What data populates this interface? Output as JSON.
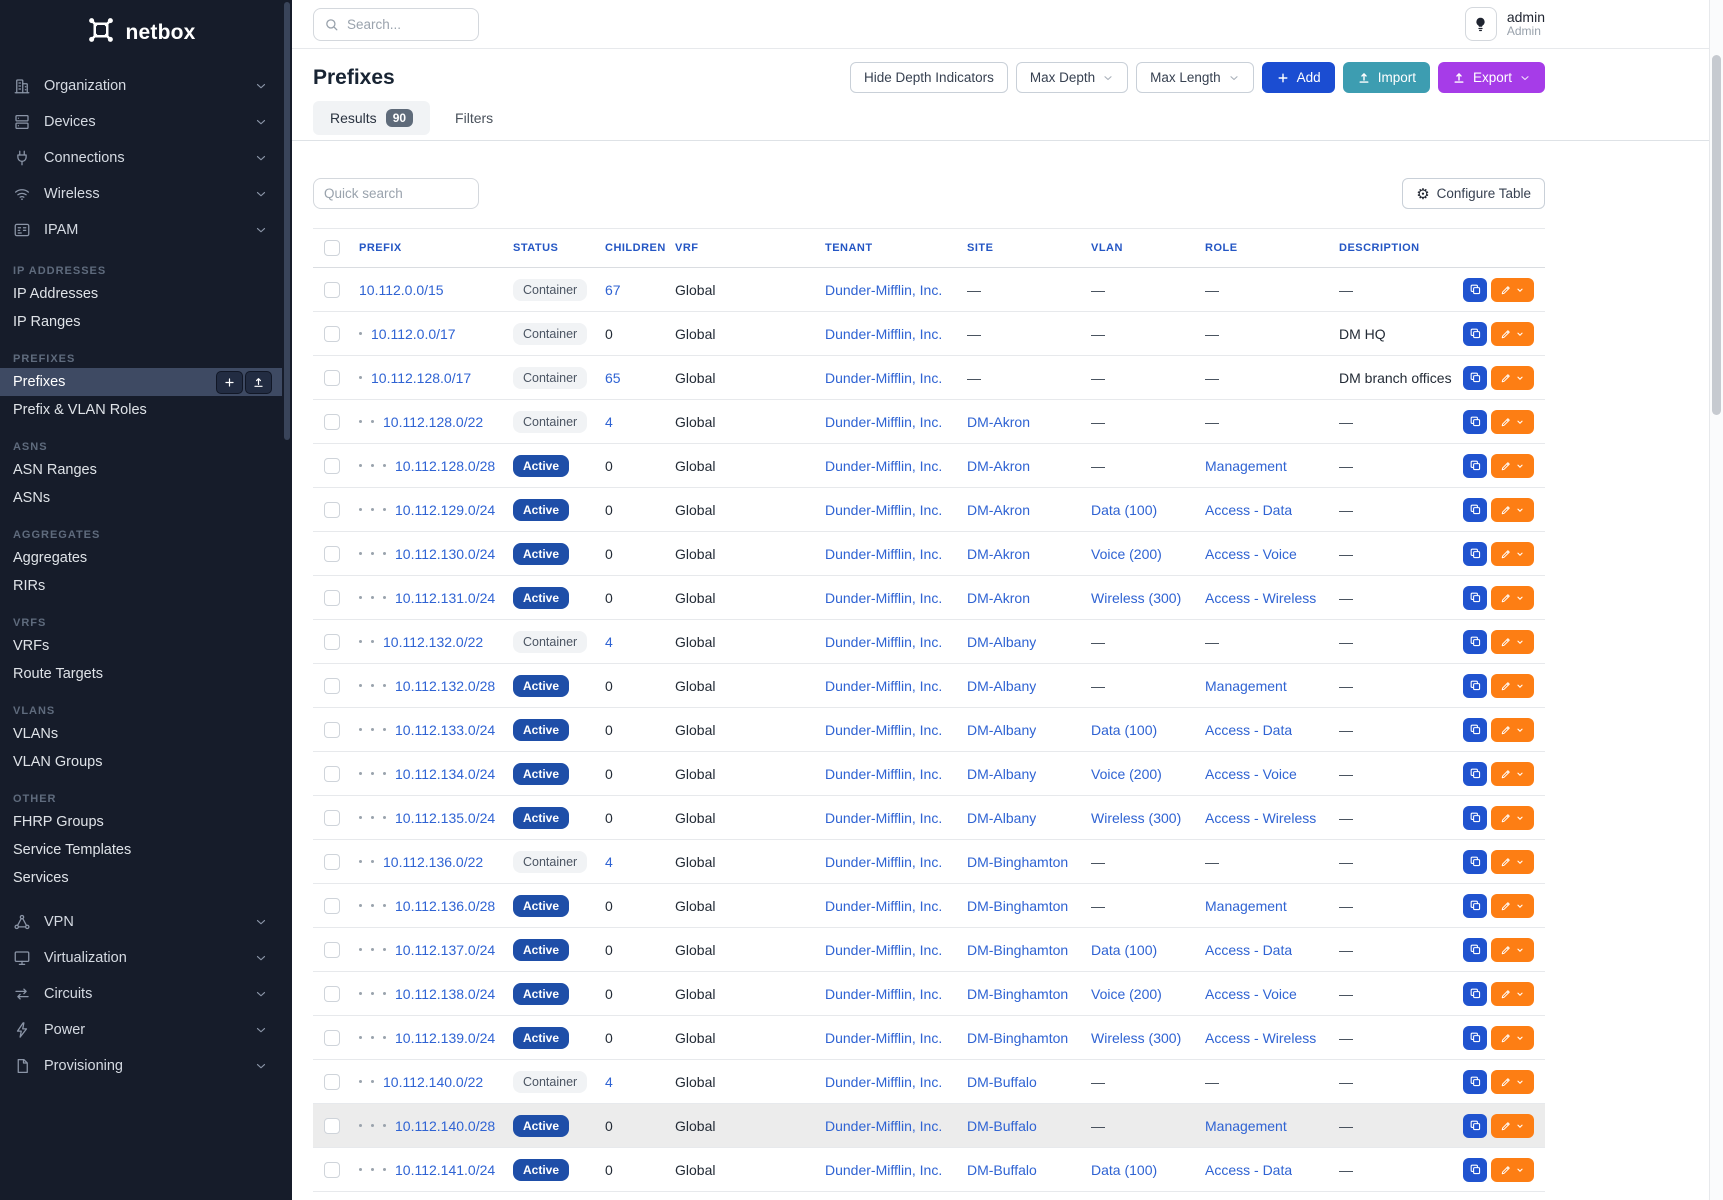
{
  "sidebar": {
    "brand": "netbox",
    "top_items": [
      {
        "label": "Organization",
        "icon": "organization"
      },
      {
        "label": "Devices",
        "icon": "devices"
      },
      {
        "label": "Connections",
        "icon": "connections"
      },
      {
        "label": "Wireless",
        "icon": "wireless"
      },
      {
        "label": "IPAM",
        "icon": "ipam"
      }
    ],
    "sections": [
      {
        "label": "IP ADDRESSES",
        "items": [
          {
            "label": "IP Addresses"
          },
          {
            "label": "IP Ranges"
          }
        ]
      },
      {
        "label": "PREFIXES",
        "items": [
          {
            "label": "Prefixes",
            "active": true,
            "actions": [
              "plus",
              "upload"
            ]
          },
          {
            "label": "Prefix & VLAN Roles"
          }
        ]
      },
      {
        "label": "ASNS",
        "items": [
          {
            "label": "ASN Ranges"
          },
          {
            "label": "ASNs"
          }
        ]
      },
      {
        "label": "AGGREGATES",
        "items": [
          {
            "label": "Aggregates"
          },
          {
            "label": "RIRs"
          }
        ]
      },
      {
        "label": "VRFS",
        "items": [
          {
            "label": "VRFs"
          },
          {
            "label": "Route Targets"
          }
        ]
      },
      {
        "label": "VLANS",
        "items": [
          {
            "label": "VLANs"
          },
          {
            "label": "VLAN Groups"
          }
        ]
      },
      {
        "label": "OTHER",
        "items": [
          {
            "label": "FHRP Groups"
          },
          {
            "label": "Service Templates"
          },
          {
            "label": "Services"
          }
        ]
      }
    ],
    "bottom_items": [
      {
        "label": "VPN",
        "icon": "vpn"
      },
      {
        "label": "Virtualization",
        "icon": "virtualization"
      },
      {
        "label": "Circuits",
        "icon": "circuits"
      },
      {
        "label": "Power",
        "icon": "power"
      },
      {
        "label": "Provisioning",
        "icon": "provisioning"
      }
    ]
  },
  "topbar": {
    "search_placeholder": "Search...",
    "user": {
      "name": "admin",
      "role": "Admin"
    }
  },
  "page": {
    "title": "Prefixes",
    "toolbar": [
      {
        "label": "Hide Depth Indicators",
        "style": "outline"
      },
      {
        "label": "Max Depth",
        "style": "outline",
        "caret": true
      },
      {
        "label": "Max Length",
        "style": "outline",
        "caret": true
      },
      {
        "label": "Add",
        "style": "primary",
        "icon": "plus"
      },
      {
        "label": "Import",
        "style": "teal",
        "icon": "upload"
      },
      {
        "label": "Export",
        "style": "purple",
        "icon": "upload",
        "caret": true
      }
    ],
    "tabs": [
      {
        "label": "Results",
        "badge": "90",
        "active": true
      },
      {
        "label": "Filters",
        "active": false
      }
    ]
  },
  "table": {
    "quick_search_placeholder": "Quick search",
    "configure_label": "Configure Table",
    "columns": [
      "PREFIX",
      "STATUS",
      "CHILDREN",
      "VRF",
      "TENANT",
      "SITE",
      "VLAN",
      "ROLE",
      "DESCRIPTION"
    ],
    "empty_value": "—",
    "rows": [
      {
        "depth": 0,
        "prefix": "10.112.0.0/15",
        "status": "Container",
        "children": "67",
        "vrf": "Global",
        "tenant": "Dunder-Mifflin, Inc.",
        "site": "",
        "vlan": "",
        "role": "",
        "description": "",
        "highlight": false
      },
      {
        "depth": 1,
        "prefix": "10.112.0.0/17",
        "status": "Container",
        "children": "0",
        "vrf": "Global",
        "tenant": "Dunder-Mifflin, Inc.",
        "site": "",
        "vlan": "",
        "role": "",
        "description": "DM HQ",
        "highlight": false
      },
      {
        "depth": 1,
        "prefix": "10.112.128.0/17",
        "status": "Container",
        "children": "65",
        "vrf": "Global",
        "tenant": "Dunder-Mifflin, Inc.",
        "site": "",
        "vlan": "",
        "role": "",
        "description": "DM branch offices",
        "highlight": false
      },
      {
        "depth": 2,
        "prefix": "10.112.128.0/22",
        "status": "Container",
        "children": "4",
        "vrf": "Global",
        "tenant": "Dunder-Mifflin, Inc.",
        "site": "DM-Akron",
        "vlan": "",
        "role": "",
        "description": "",
        "highlight": false
      },
      {
        "depth": 3,
        "prefix": "10.112.128.0/28",
        "status": "Active",
        "children": "0",
        "vrf": "Global",
        "tenant": "Dunder-Mifflin, Inc.",
        "site": "DM-Akron",
        "vlan": "",
        "role": "Management",
        "description": "",
        "highlight": false
      },
      {
        "depth": 3,
        "prefix": "10.112.129.0/24",
        "status": "Active",
        "children": "0",
        "vrf": "Global",
        "tenant": "Dunder-Mifflin, Inc.",
        "site": "DM-Akron",
        "vlan": "Data (100)",
        "role": "Access - Data",
        "description": "",
        "highlight": false
      },
      {
        "depth": 3,
        "prefix": "10.112.130.0/24",
        "status": "Active",
        "children": "0",
        "vrf": "Global",
        "tenant": "Dunder-Mifflin, Inc.",
        "site": "DM-Akron",
        "vlan": "Voice (200)",
        "role": "Access - Voice",
        "description": "",
        "highlight": false
      },
      {
        "depth": 3,
        "prefix": "10.112.131.0/24",
        "status": "Active",
        "children": "0",
        "vrf": "Global",
        "tenant": "Dunder-Mifflin, Inc.",
        "site": "DM-Akron",
        "vlan": "Wireless (300)",
        "role": "Access - Wireless",
        "description": "",
        "highlight": false
      },
      {
        "depth": 2,
        "prefix": "10.112.132.0/22",
        "status": "Container",
        "children": "4",
        "vrf": "Global",
        "tenant": "Dunder-Mifflin, Inc.",
        "site": "DM-Albany",
        "vlan": "",
        "role": "",
        "description": "",
        "highlight": false
      },
      {
        "depth": 3,
        "prefix": "10.112.132.0/28",
        "status": "Active",
        "children": "0",
        "vrf": "Global",
        "tenant": "Dunder-Mifflin, Inc.",
        "site": "DM-Albany",
        "vlan": "",
        "role": "Management",
        "description": "",
        "highlight": false
      },
      {
        "depth": 3,
        "prefix": "10.112.133.0/24",
        "status": "Active",
        "children": "0",
        "vrf": "Global",
        "tenant": "Dunder-Mifflin, Inc.",
        "site": "DM-Albany",
        "vlan": "Data (100)",
        "role": "Access - Data",
        "description": "",
        "highlight": false
      },
      {
        "depth": 3,
        "prefix": "10.112.134.0/24",
        "status": "Active",
        "children": "0",
        "vrf": "Global",
        "tenant": "Dunder-Mifflin, Inc.",
        "site": "DM-Albany",
        "vlan": "Voice (200)",
        "role": "Access - Voice",
        "description": "",
        "highlight": false
      },
      {
        "depth": 3,
        "prefix": "10.112.135.0/24",
        "status": "Active",
        "children": "0",
        "vrf": "Global",
        "tenant": "Dunder-Mifflin, Inc.",
        "site": "DM-Albany",
        "vlan": "Wireless (300)",
        "role": "Access - Wireless",
        "description": "",
        "highlight": false
      },
      {
        "depth": 2,
        "prefix": "10.112.136.0/22",
        "status": "Container",
        "children": "4",
        "vrf": "Global",
        "tenant": "Dunder-Mifflin, Inc.",
        "site": "DM-Binghamton",
        "vlan": "",
        "role": "",
        "description": "",
        "highlight": false
      },
      {
        "depth": 3,
        "prefix": "10.112.136.0/28",
        "status": "Active",
        "children": "0",
        "vrf": "Global",
        "tenant": "Dunder-Mifflin, Inc.",
        "site": "DM-Binghamton",
        "vlan": "",
        "role": "Management",
        "description": "",
        "highlight": false
      },
      {
        "depth": 3,
        "prefix": "10.112.137.0/24",
        "status": "Active",
        "children": "0",
        "vrf": "Global",
        "tenant": "Dunder-Mifflin, Inc.",
        "site": "DM-Binghamton",
        "vlan": "Data (100)",
        "role": "Access - Data",
        "description": "",
        "highlight": false
      },
      {
        "depth": 3,
        "prefix": "10.112.138.0/24",
        "status": "Active",
        "children": "0",
        "vrf": "Global",
        "tenant": "Dunder-Mifflin, Inc.",
        "site": "DM-Binghamton",
        "vlan": "Voice (200)",
        "role": "Access - Voice",
        "description": "",
        "highlight": false
      },
      {
        "depth": 3,
        "prefix": "10.112.139.0/24",
        "status": "Active",
        "children": "0",
        "vrf": "Global",
        "tenant": "Dunder-Mifflin, Inc.",
        "site": "DM-Binghamton",
        "vlan": "Wireless (300)",
        "role": "Access - Wireless",
        "description": "",
        "highlight": false
      },
      {
        "depth": 2,
        "prefix": "10.112.140.0/22",
        "status": "Container",
        "children": "4",
        "vrf": "Global",
        "tenant": "Dunder-Mifflin, Inc.",
        "site": "DM-Buffalo",
        "vlan": "",
        "role": "",
        "description": "",
        "highlight": false
      },
      {
        "depth": 3,
        "prefix": "10.112.140.0/28",
        "status": "Active",
        "children": "0",
        "vrf": "Global",
        "tenant": "Dunder-Mifflin, Inc.",
        "site": "DM-Buffalo",
        "vlan": "",
        "role": "Management",
        "description": "",
        "highlight": true
      },
      {
        "depth": 3,
        "prefix": "10.112.141.0/24",
        "status": "Active",
        "children": "0",
        "vrf": "Global",
        "tenant": "Dunder-Mifflin, Inc.",
        "site": "DM-Buffalo",
        "vlan": "Data (100)",
        "role": "Access - Data",
        "description": "",
        "highlight": false
      }
    ]
  },
  "colors": {
    "sidebar_bg": "#161c2a",
    "sidebar_active_bg": "#3e4a63",
    "link_blue": "#2f63d3",
    "header_blue": "#2456c4",
    "badge_active_bg": "#1e4ea8",
    "badge_container_bg": "#f1f3f5",
    "add_button": "#1b4dd2",
    "import_button": "#3d9db1",
    "export_button": "#a63ce8",
    "edit_button_orange": "#fd7e14",
    "copy_button_blue": "#2053cf"
  }
}
